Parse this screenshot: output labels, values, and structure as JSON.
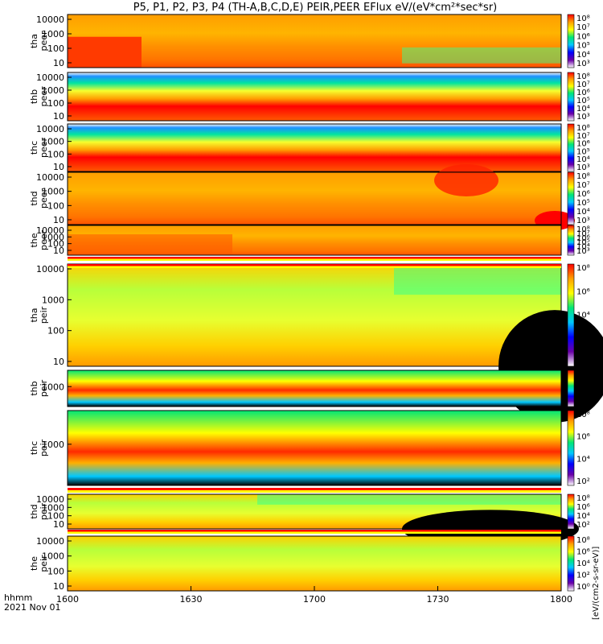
{
  "chart_data": {
    "type": "heatmap",
    "title": "P5, P1, P2, P3, P4 (TH-A,B,C,D,E) PEIR,PEER EFlux eV/(eV*cm²*sec*sr)",
    "colorbar_label": "[eV/(cm2-s-sr-eV)]",
    "x_axis": {
      "ticks": [
        "1600",
        "1630",
        "1700",
        "1730",
        "1800"
      ],
      "label_line1": "hhmm",
      "label_line2": "2021 Nov 01",
      "range": [
        "16:00",
        "18:00"
      ]
    },
    "y_scale": "log",
    "colorbar_scale": "log",
    "colormap": [
      "#ffffff",
      "#6a00a8",
      "#0000ff",
      "#00c8ff",
      "#00e676",
      "#ffff00",
      "#ff9f00",
      "#ff0000"
    ],
    "panels": [
      {
        "id": "tha-peer",
        "ylabel_1": "tha",
        "ylabel_2": "peer",
        "yticks": [
          "10000",
          "1000",
          "100",
          "10"
        ],
        "cbar_ticks": [
          "10⁸",
          "10⁷",
          "10⁶",
          "10⁵",
          "10⁴",
          "10³"
        ],
        "has_flag": false
      },
      {
        "id": "thb-peer",
        "ylabel_1": "thb",
        "ylabel_2": "peer",
        "yticks": [
          "10000",
          "1000",
          "100",
          "10"
        ],
        "cbar_ticks": [
          "10⁸",
          "10⁷",
          "10⁶",
          "10⁵",
          "10⁴",
          "10³"
        ],
        "has_flag": false
      },
      {
        "id": "thc-peer",
        "ylabel_1": "thc",
        "ylabel_2": "peer",
        "yticks": [
          "10000",
          "1000",
          "100",
          "10"
        ],
        "cbar_ticks": [
          "10⁸",
          "10⁷",
          "10⁶",
          "10⁵",
          "10⁴",
          "10³"
        ],
        "has_flag": false
      },
      {
        "id": "thd-peer",
        "ylabel_1": "thd",
        "ylabel_2": "peer",
        "yticks": [
          "10000",
          "1000",
          "100",
          "10"
        ],
        "cbar_ticks": [
          "10⁸",
          "10⁷",
          "10⁶",
          "10⁵",
          "10⁴",
          "10³"
        ],
        "has_flag": false
      },
      {
        "id": "the-peer",
        "ylabel_1": "the",
        "ylabel_2": "peer",
        "yticks": [
          "10000",
          "1000",
          "100",
          "10"
        ],
        "cbar_ticks": [
          "10⁸",
          "10⁷",
          "10⁶",
          "10⁵",
          "10⁴",
          "10³"
        ],
        "has_flag": true
      },
      {
        "id": "tha-peir",
        "ylabel_1": "tha",
        "ylabel_2": "peir",
        "yticks": [
          "10000",
          "1000",
          "100",
          "10"
        ],
        "cbar_ticks": [
          "10⁸",
          "10⁶",
          "10⁴",
          "10²",
          "10⁰"
        ],
        "has_flag": true
      },
      {
        "id": "thb-peir",
        "ylabel_1": "thb",
        "ylabel_2": "peir",
        "yticks": [
          "1000"
        ],
        "cbar_ticks": [
          "10⁸",
          "10⁶",
          "10⁴",
          "10²"
        ],
        "has_flag": false
      },
      {
        "id": "thc-peir",
        "ylabel_1": "thc",
        "ylabel_2": "peir",
        "yticks": [
          "1000"
        ],
        "cbar_ticks": [
          "10⁸",
          "10⁶",
          "10⁴",
          "10²"
        ],
        "has_flag": true
      },
      {
        "id": "thd-peir",
        "ylabel_1": "thd",
        "ylabel_2": "peir",
        "yticks": [
          "10000",
          "1000",
          "100",
          "10"
        ],
        "cbar_ticks": [
          "10⁸",
          "10⁶",
          "10⁴",
          "10²"
        ],
        "has_flag": true
      },
      {
        "id": "the-peir",
        "ylabel_1": "the",
        "ylabel_2": "peir",
        "yticks": [
          "10000",
          "1000",
          "100",
          "10"
        ],
        "cbar_ticks": [
          "10⁸",
          "10⁶",
          "10⁴",
          "10²",
          "10⁰"
        ],
        "has_flag": false
      }
    ]
  }
}
